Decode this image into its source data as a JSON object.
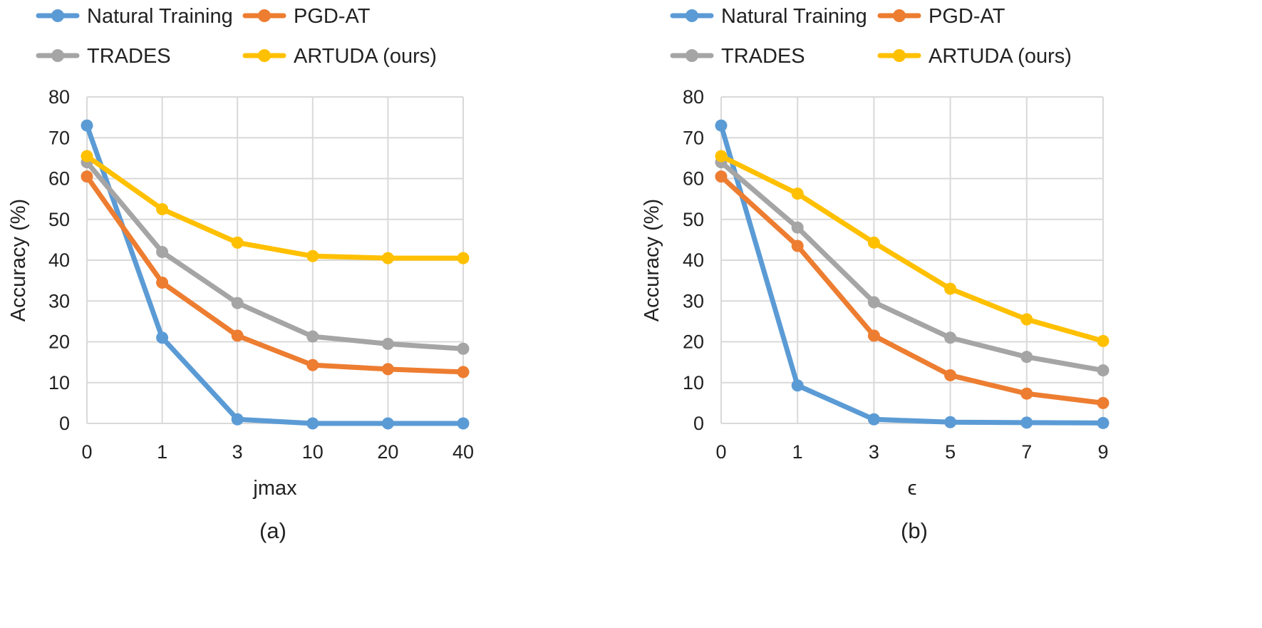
{
  "chart_data": [
    {
      "type": "line",
      "panel_caption": "(a)",
      "xlabel": "jmax",
      "ylabel": "Accuracy (%)",
      "categories": [
        "0",
        "1",
        "3",
        "10",
        "20",
        "40"
      ],
      "ylim": [
        0,
        80
      ],
      "yticks": [
        "0",
        "10",
        "20",
        "30",
        "40",
        "50",
        "60",
        "70",
        "80"
      ],
      "grid": true,
      "legend_position": "top",
      "series": [
        {
          "name": "Natural Training",
          "color": "#5b9bd5",
          "values": [
            73,
            21,
            1,
            0,
            0,
            0
          ]
        },
        {
          "name": "PGD-AT",
          "color": "#ed7d31",
          "values": [
            60.5,
            34.5,
            21.5,
            14.3,
            13.3,
            12.6
          ]
        },
        {
          "name": "TRADES",
          "color": "#a5a5a5",
          "values": [
            64,
            42,
            29.5,
            21.3,
            19.5,
            18.3
          ]
        },
        {
          "name": "ARTUDA (ours)",
          "color": "#ffc000",
          "values": [
            65.5,
            52.5,
            44.3,
            41,
            40.5,
            40.5
          ]
        }
      ]
    },
    {
      "type": "line",
      "panel_caption": "(b)",
      "xlabel": "ϵ",
      "ylabel": "Accuracy (%)",
      "categories": [
        "0",
        "1",
        "3",
        "5",
        "7",
        "9"
      ],
      "ylim": [
        0,
        80
      ],
      "yticks": [
        "0",
        "10",
        "20",
        "30",
        "40",
        "50",
        "60",
        "70",
        "80"
      ],
      "grid": true,
      "legend_position": "top",
      "series": [
        {
          "name": "Natural Training",
          "color": "#5b9bd5",
          "values": [
            73,
            9.3,
            1,
            0.3,
            0.2,
            0.1
          ]
        },
        {
          "name": "PGD-AT",
          "color": "#ed7d31",
          "values": [
            60.5,
            43.5,
            21.5,
            11.8,
            7.3,
            5
          ]
        },
        {
          "name": "TRADES",
          "color": "#a5a5a5",
          "values": [
            64,
            48,
            29.7,
            21,
            16.3,
            13
          ]
        },
        {
          "name": "ARTUDA (ours)",
          "color": "#ffc000",
          "values": [
            65.5,
            56.3,
            44.3,
            33,
            25.5,
            20.2
          ]
        }
      ]
    }
  ]
}
